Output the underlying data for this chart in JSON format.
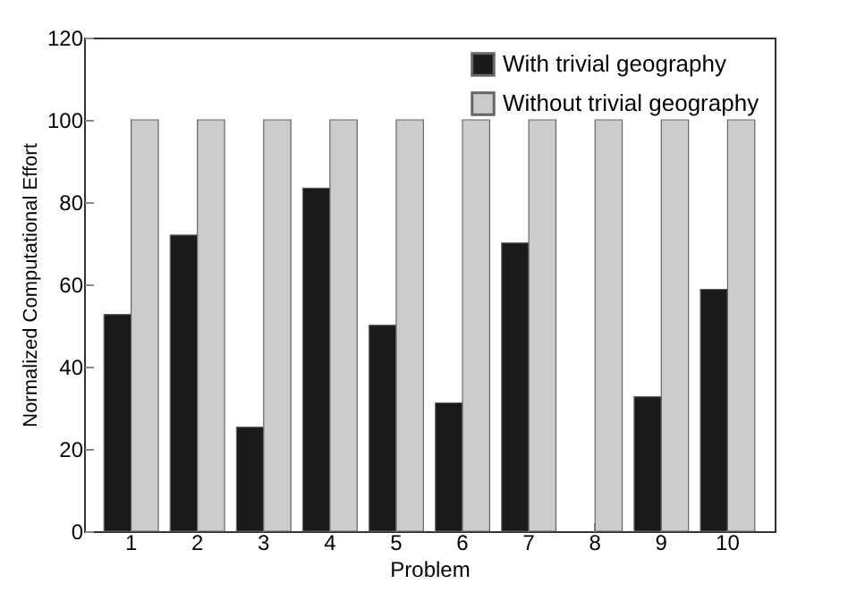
{
  "chart_data": {
    "type": "bar",
    "xlabel": "Problem",
    "ylabel": "Normalized Computational Effort",
    "categories": [
      "1",
      "2",
      "3",
      "4",
      "5",
      "6",
      "7",
      "8",
      "9",
      "10"
    ],
    "series": [
      {
        "name": "With trivial geography",
        "color": "#1a1a1a",
        "values": [
          52.7,
          72,
          25.3,
          83.4,
          50.1,
          31.2,
          70.1,
          0,
          32.7,
          58.8
        ]
      },
      {
        "name": "Without trivial geography",
        "color": "#cccccc",
        "values": [
          100,
          100,
          100,
          100,
          100,
          100,
          100,
          100,
          100,
          100
        ]
      }
    ],
    "ylim": [
      0,
      120
    ],
    "yticks": [
      0,
      20,
      40,
      60,
      80,
      100,
      120
    ],
    "grid": false,
    "legend": "top right"
  }
}
